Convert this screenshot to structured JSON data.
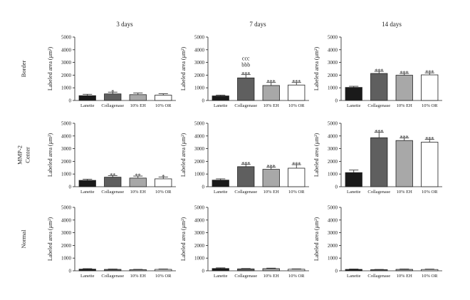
{
  "column_titles": [
    "3 days",
    "7 days",
    "14 days"
  ],
  "row_labels": [
    [
      "Border"
    ],
    [
      "MMP-2",
      "Center"
    ],
    [
      "Normal"
    ]
  ],
  "categories": [
    "Lanette",
    "Collagenase",
    "10% EH",
    "10% OR"
  ],
  "y_axis_label": "Labeled area (μm²)",
  "y_ticks": [
    0,
    1000,
    2000,
    3000,
    4000,
    5000
  ],
  "colors": {
    "Lanette": "#1a1a1a",
    "Collagenase": "#5f5f5f",
    "10% EH": "#a8a8a8",
    "10% OR": "#ffffff",
    "outline": "#222222"
  },
  "chart_data": [
    {
      "type": "bar",
      "row": "Border",
      "column": "3 days",
      "ylim": [
        0,
        5000
      ],
      "categories": [
        "Lanette",
        "Collagenase",
        "10% EH",
        "10% OR"
      ],
      "values": [
        380,
        520,
        460,
        420
      ],
      "errors": [
        110,
        140,
        130,
        110
      ],
      "annotations": [
        [],
        [
          "*"
        ],
        [],
        []
      ]
    },
    {
      "type": "bar",
      "row": "Border",
      "column": "7 days",
      "ylim": [
        0,
        5000
      ],
      "categories": [
        "Lanette",
        "Collagenase",
        "10% EH",
        "10% OR"
      ],
      "values": [
        360,
        1780,
        1180,
        1220
      ],
      "errors": [
        60,
        260,
        240,
        200
      ],
      "annotations": [
        [],
        [
          "ccc",
          "bbb",
          "***"
        ],
        [
          "***"
        ],
        [
          "***"
        ]
      ]
    },
    {
      "type": "bar",
      "row": "Border",
      "column": "14 days",
      "ylim": [
        0,
        5000
      ],
      "categories": [
        "Lanette",
        "Collagenase",
        "10% EH",
        "10% OR"
      ],
      "values": [
        1030,
        2130,
        1990,
        2020
      ],
      "errors": [
        90,
        170,
        140,
        160
      ],
      "annotations": [
        [],
        [
          "***"
        ],
        [
          "***"
        ],
        [
          "***"
        ]
      ]
    },
    {
      "type": "bar",
      "row": "MMP-2 Center",
      "column": "3 days",
      "ylim": [
        0,
        5000
      ],
      "categories": [
        "Lanette",
        "Collagenase",
        "10% EH",
        "10% OR"
      ],
      "values": [
        500,
        750,
        680,
        620
      ],
      "errors": [
        90,
        130,
        160,
        150
      ],
      "annotations": [
        [],
        [
          "**"
        ],
        [
          "**"
        ],
        [
          "*"
        ]
      ]
    },
    {
      "type": "bar",
      "row": "MMP-2 Center",
      "column": "7 days",
      "ylim": [
        0,
        5000
      ],
      "categories": [
        "Lanette",
        "Collagenase",
        "10% EH",
        "10% OR"
      ],
      "values": [
        520,
        1580,
        1370,
        1460
      ],
      "errors": [
        100,
        190,
        170,
        280
      ],
      "annotations": [
        [],
        [
          "***"
        ],
        [
          "***"
        ],
        [
          "***"
        ]
      ]
    },
    {
      "type": "bar",
      "row": "MMP-2 Center",
      "column": "14 days",
      "ylim": [
        0,
        5000
      ],
      "categories": [
        "Lanette",
        "Collagenase",
        "10% EH",
        "10% OR"
      ],
      "values": [
        1110,
        3860,
        3640,
        3510
      ],
      "errors": [
        200,
        430,
        200,
        220
      ],
      "annotations": [
        [],
        [
          "***"
        ],
        [
          "***"
        ],
        [
          "***"
        ]
      ]
    },
    {
      "type": "bar",
      "row": "Normal",
      "column": "3 days",
      "ylim": [
        0,
        5000
      ],
      "categories": [
        "Lanette",
        "Collagenase",
        "10% EH",
        "10% OR"
      ],
      "values": [
        130,
        110,
        90,
        110
      ],
      "errors": [
        40,
        30,
        25,
        30
      ],
      "annotations": [
        [],
        [],
        [],
        []
      ]
    },
    {
      "type": "bar",
      "row": "Normal",
      "column": "7 days",
      "ylim": [
        0,
        5000
      ],
      "categories": [
        "Lanette",
        "Collagenase",
        "10% EH",
        "10% OR"
      ],
      "values": [
        180,
        150,
        170,
        120
      ],
      "errors": [
        50,
        30,
        40,
        30
      ],
      "annotations": [
        [],
        [],
        [],
        []
      ]
    },
    {
      "type": "bar",
      "row": "Normal",
      "column": "14 days",
      "ylim": [
        0,
        5000
      ],
      "categories": [
        "Lanette",
        "Collagenase",
        "10% EH",
        "10% OR"
      ],
      "values": [
        110,
        90,
        110,
        100
      ],
      "errors": [
        30,
        20,
        30,
        30
      ],
      "annotations": [
        [],
        [],
        [],
        []
      ]
    }
  ]
}
